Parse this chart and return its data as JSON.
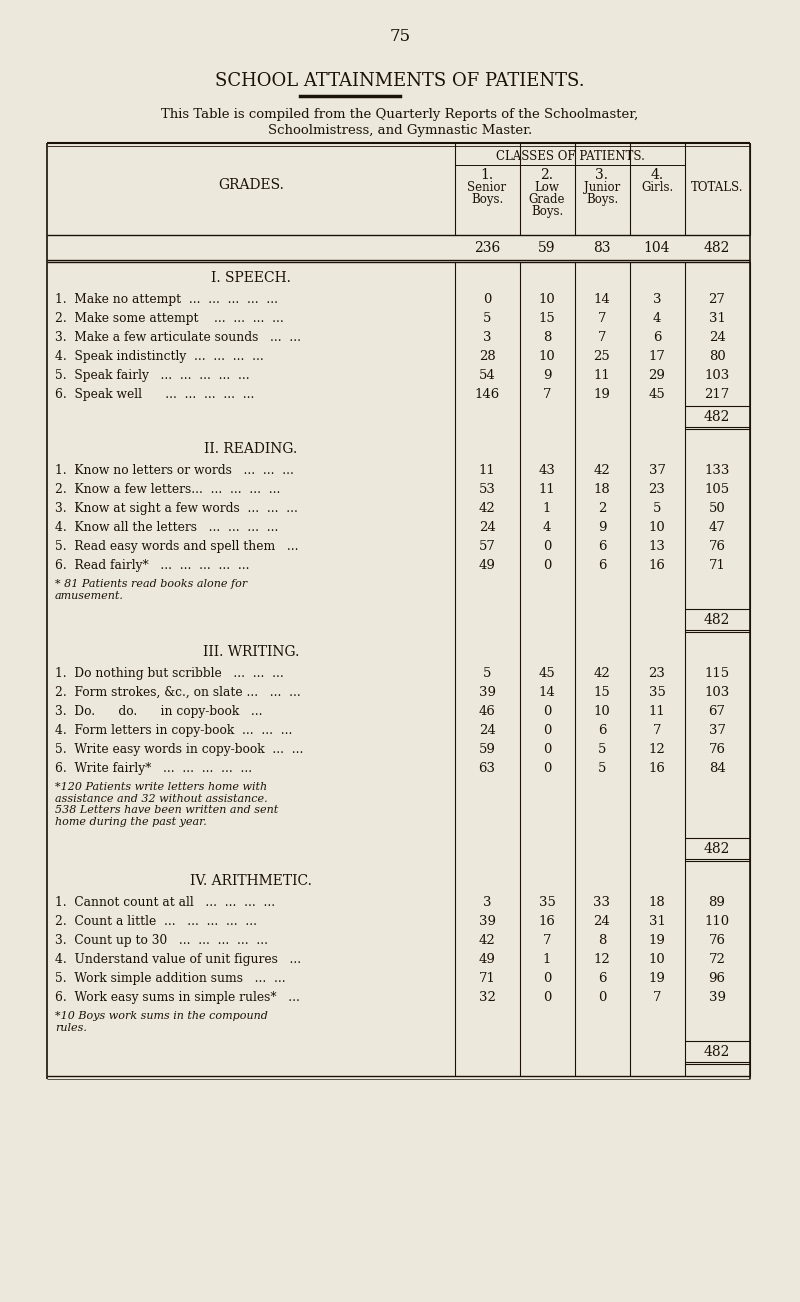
{
  "page_number": "75",
  "title": "SCHOOL ATTAINMENTS OF PATIENTS.",
  "subtitle1": "This Table is compiled from the Quarterly Reports of the Schoolmaster,",
  "subtitle2": "Schoolmistress, and Gymnastic Master.",
  "bg_color": "#ede8dc",
  "text_color": "#1a1208",
  "col_header_label": "CLASSES OF PATIENTS.",
  "grades_label": "GRADES.",
  "col_numbers": [
    "1.",
    "2.",
    "3.",
    "4."
  ],
  "col_name_lines": [
    [
      "Senior",
      "Boys."
    ],
    [
      "Low",
      "Grade",
      "Boys."
    ],
    [
      "Junior",
      "Boys."
    ],
    [
      "Girls."
    ],
    [
      "TOTALS."
    ]
  ],
  "col_totals_row": [
    "236",
    "59",
    "83",
    "104",
    "482"
  ],
  "sections": [
    {
      "title": "I. SPEECH.",
      "rows": [
        {
          "label": "1.  Make no attempt  ...  ...  ...  ...  ...",
          "vals": [
            "0",
            "10",
            "14",
            "3",
            "27"
          ]
        },
        {
          "label": "2.  Make some attempt    ...  ...  ...  ...",
          "vals": [
            "5",
            "15",
            "7",
            "4",
            "31"
          ]
        },
        {
          "label": "3.  Make a few articulate sounds   ...  ...",
          "vals": [
            "3",
            "8",
            "7",
            "6",
            "24"
          ]
        },
        {
          "label": "4.  Speak indistinctly  ...  ...  ...  ...",
          "vals": [
            "28",
            "10",
            "25",
            "17",
            "80"
          ]
        },
        {
          "label": "5.  Speak fairly   ...  ...  ...  ...  ...",
          "vals": [
            "54",
            "9",
            "11",
            "29",
            "103"
          ]
        },
        {
          "label": "6.  Speak well      ...  ...  ...  ...  ...",
          "vals": [
            "146",
            "7",
            "19",
            "45",
            "217"
          ]
        }
      ],
      "section_total": "482",
      "footnote": null
    },
    {
      "title": "II. READING.",
      "rows": [
        {
          "label": "1.  Know no letters or words   ...  ...  ...",
          "vals": [
            "11",
            "43",
            "42",
            "37",
            "133"
          ]
        },
        {
          "label": "2.  Know a few letters...  ...  ...  ...  ...",
          "vals": [
            "53",
            "11",
            "18",
            "23",
            "105"
          ]
        },
        {
          "label": "3.  Know at sight a few words  ...  ...  ...",
          "vals": [
            "42",
            "1",
            "2",
            "5",
            "50"
          ]
        },
        {
          "label": "4.  Know all the letters   ...  ...  ...  ...",
          "vals": [
            "24",
            "4",
            "9",
            "10",
            "47"
          ]
        },
        {
          "label": "5.  Read easy words and spell them   ...",
          "vals": [
            "57",
            "0",
            "6",
            "13",
            "76"
          ]
        },
        {
          "label": "6.  Read fairly*   ...  ...  ...  ...  ...",
          "vals": [
            "49",
            "0",
            "6",
            "16",
            "71"
          ]
        }
      ],
      "section_total": "482",
      "footnote_parts": [
        {
          "text": "* 81 ",
          "style": "normal"
        },
        {
          "text": "Patients read books alone for\namusement.",
          "style": "italic"
        }
      ]
    },
    {
      "title": "III. WRITING.",
      "rows": [
        {
          "label": "1.  Do nothing but scribble   ...  ...  ...",
          "vals": [
            "5",
            "45",
            "42",
            "23",
            "115"
          ]
        },
        {
          "label": "2.  Form strokes, &c., on slate ...   ...  ...",
          "vals": [
            "39",
            "14",
            "15",
            "35",
            "103"
          ]
        },
        {
          "label": "3.  Do.      do.      in copy-book   ...",
          "vals": [
            "46",
            "0",
            "10",
            "11",
            "67"
          ]
        },
        {
          "label": "4.  Form letters in copy-book  ...  ...  ...",
          "vals": [
            "24",
            "0",
            "6",
            "7",
            "37"
          ]
        },
        {
          "label": "5.  Write easy words in copy-book  ...  ...",
          "vals": [
            "59",
            "0",
            "5",
            "12",
            "76"
          ]
        },
        {
          "label": "6.  Write fairly*   ...  ...  ...  ...  ...",
          "vals": [
            "63",
            "0",
            "5",
            "16",
            "84"
          ]
        }
      ],
      "section_total": "482",
      "footnote_parts": [
        {
          "text": "*120 ",
          "style": "normal"
        },
        {
          "text": "Patients write letters home with\nassistance and 32 without assistance.\n538 Letters have been written and sent\nhome during the past year.",
          "style": "italic"
        }
      ]
    },
    {
      "title": "IV. ARITHMETIC.",
      "rows": [
        {
          "label": "1.  Cannot count at all   ...  ...  ...  ...",
          "vals": [
            "3",
            "35",
            "33",
            "18",
            "89"
          ]
        },
        {
          "label": "2.  Count a little  ...   ...  ...  ...  ...",
          "vals": [
            "39",
            "16",
            "24",
            "31",
            "110"
          ]
        },
        {
          "label": "3.  Count up to 30   ...  ...  ...  ...  ...",
          "vals": [
            "42",
            "7",
            "8",
            "19",
            "76"
          ]
        },
        {
          "label": "4.  Understand value of unit figures   ...",
          "vals": [
            "49",
            "1",
            "12",
            "10",
            "72"
          ]
        },
        {
          "label": "5.  Work simple addition sums   ...  ...",
          "vals": [
            "71",
            "0",
            "6",
            "19",
            "96"
          ]
        },
        {
          "label": "6.  Work easy sums in simple rules*   ...",
          "vals": [
            "32",
            "0",
            "0",
            "7",
            "39"
          ]
        }
      ],
      "section_total": "482",
      "footnote_parts": [
        {
          "text": "*10 ",
          "style": "normal"
        },
        {
          "text": "Boys work sums in the compound\nrules.",
          "style": "italic"
        }
      ]
    }
  ]
}
